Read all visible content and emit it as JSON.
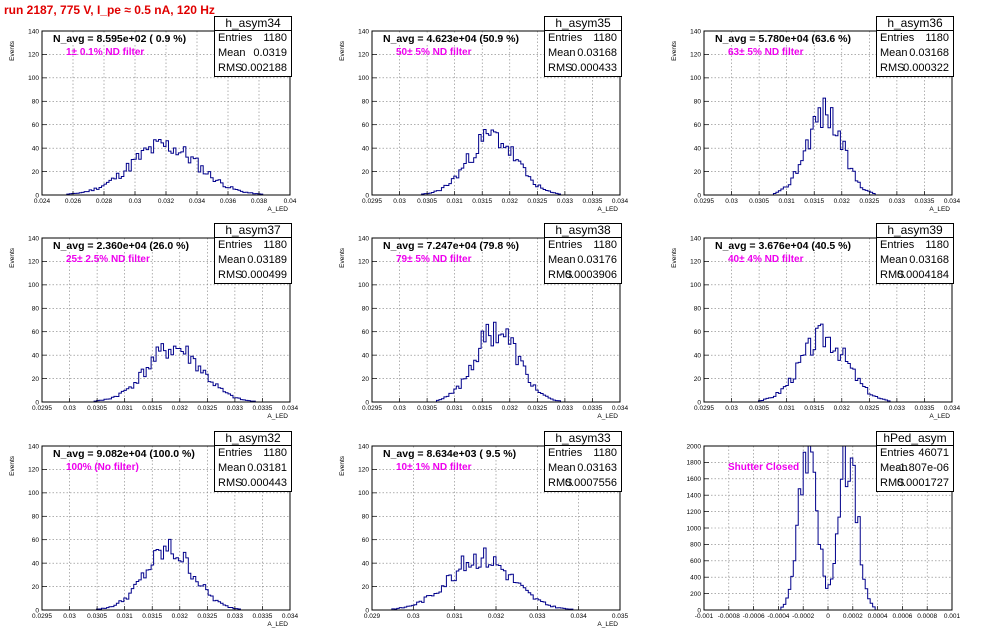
{
  "run_title": "run 2187,   775 V, I_pe ≈ 0.5 nA, 120 Hz",
  "colors": {
    "histogram": "#00008b",
    "annotation": "#ee00ee",
    "run_title": "#e00000",
    "grid": "#7f7f7f"
  },
  "chart_data": [
    {
      "type": "bar",
      "name": "h_asym34",
      "title": "h_asym34",
      "n_avg": "N_avg = 8.595e+02 ( 0.9 %)",
      "filter": "1± 0.1% ND filter",
      "stats": [
        [
          "Entries",
          "1180"
        ],
        [
          "Mean",
          "0.0319"
        ],
        [
          "RMS",
          "0.002188"
        ]
      ],
      "ylabel": "Events",
      "xlabel": "A_LED",
      "xlim": [
        0.024,
        0.04
      ],
      "ylim": [
        0,
        140
      ],
      "xticks": [
        0.024,
        0.026,
        0.028,
        0.03,
        0.032,
        0.034,
        0.036,
        0.038,
        0.04
      ],
      "xtick_labels": [
        "0.024",
        "0.026",
        "0.028",
        "0.03",
        "0.032",
        "0.034",
        "0.036",
        "0.038",
        "0.04"
      ],
      "yticks": [
        0,
        20,
        40,
        60,
        80,
        100,
        120,
        140
      ],
      "bins": 100,
      "mean": 0.0319,
      "rms": 0.002188,
      "peak": 42,
      "peak_offset": 0,
      "seed": 11
    },
    {
      "type": "bar",
      "name": "h_asym35",
      "title": "h_asym35",
      "n_avg": "N_avg = 4.623e+04 (50.9 %)",
      "filter": "50± 5% ND filter",
      "stats": [
        [
          "Entries",
          "1180"
        ],
        [
          "Mean",
          "0.03168"
        ],
        [
          "RMS",
          "0.000433"
        ]
      ],
      "ylabel": "Events",
      "xlabel": "A_LED",
      "xlim": [
        0.0295,
        0.034
      ],
      "ylim": [
        0,
        140
      ],
      "xticks": [
        0.0295,
        0.03,
        0.0305,
        0.031,
        0.0315,
        0.032,
        0.0325,
        0.033,
        0.0335,
        0.034
      ],
      "xtick_labels": [
        "0.0295",
        "0.03",
        "0.0305",
        "0.031",
        "0.0315",
        "0.032",
        "0.0325",
        "0.033",
        "0.0335",
        "0.034"
      ],
      "yticks": [
        0,
        20,
        40,
        60,
        80,
        100,
        120,
        140
      ],
      "bins": 100,
      "mean": 0.03168,
      "rms": 0.000433,
      "peak": 50,
      "peak_offset": 0,
      "seed": 23
    },
    {
      "type": "bar",
      "name": "h_asym36",
      "title": "h_asym36",
      "n_avg": "N_avg = 5.780e+04 (63.6 %)",
      "filter": "63± 5% ND filter",
      "stats": [
        [
          "Entries",
          "1180"
        ],
        [
          "Mean",
          "0.03168"
        ],
        [
          "RMS",
          "0.000322"
        ]
      ],
      "ylabel": "Events",
      "xlabel": "A_LED",
      "xlim": [
        0.0295,
        0.034
      ],
      "ylim": [
        0,
        140
      ],
      "xticks": [
        0.0295,
        0.03,
        0.0305,
        0.031,
        0.0315,
        0.032,
        0.0325,
        0.033,
        0.0335,
        0.034
      ],
      "xtick_labels": [
        "0.0295",
        "0.03",
        "0.0305",
        "0.031",
        "0.0315",
        "0.032",
        "0.0325",
        "0.033",
        "0.0335",
        "0.034"
      ],
      "yticks": [
        0,
        20,
        40,
        60,
        80,
        100,
        120,
        140
      ],
      "bins": 100,
      "mean": 0.03168,
      "rms": 0.000322,
      "peak": 71,
      "peak_offset": 0,
      "seed": 37
    },
    {
      "type": "bar",
      "name": "h_asym37",
      "title": "h_asym37",
      "n_avg": "N_avg = 2.360e+04 (26.0 %)",
      "filter": "25± 2.5% ND filter",
      "stats": [
        [
          "Entries",
          "1180"
        ],
        [
          "Mean",
          "0.03189"
        ],
        [
          "RMS",
          "0.000499"
        ]
      ],
      "ylabel": "Events",
      "xlabel": "A_LED",
      "xlim": [
        0.0295,
        0.034
      ],
      "ylim": [
        0,
        140
      ],
      "xticks": [
        0.0295,
        0.03,
        0.0305,
        0.031,
        0.0315,
        0.032,
        0.0325,
        0.033,
        0.0335,
        0.034
      ],
      "xtick_labels": [
        "0.0295",
        "0.03",
        "0.0305",
        "0.031",
        "0.0315",
        "0.032",
        "0.0325",
        "0.033",
        "0.0335",
        "0.034"
      ],
      "yticks": [
        0,
        20,
        40,
        60,
        80,
        100,
        120,
        140
      ],
      "bins": 100,
      "mean": 0.03189,
      "rms": 0.000499,
      "peak": 46,
      "peak_offset": 0,
      "seed": 41
    },
    {
      "type": "bar",
      "name": "h_asym38",
      "title": "h_asym38",
      "n_avg": "N_avg = 7.247e+04 (79.8 %)",
      "filter": "79± 5% ND filter",
      "stats": [
        [
          "Entries",
          "1180"
        ],
        [
          "Mean",
          "0.03176"
        ],
        [
          "RMS",
          "0.0003906"
        ]
      ],
      "ylabel": "Events",
      "xlabel": "A_LED",
      "xlim": [
        0.0295,
        0.034
      ],
      "ylim": [
        0,
        140
      ],
      "xticks": [
        0.0295,
        0.03,
        0.0305,
        0.031,
        0.0315,
        0.032,
        0.0325,
        0.033,
        0.0335,
        0.034
      ],
      "xtick_labels": [
        "0.0295",
        "0.03",
        "0.0305",
        "0.031",
        "0.0315",
        "0.032",
        "0.0325",
        "0.033",
        "0.0335",
        "0.034"
      ],
      "yticks": [
        0,
        20,
        40,
        60,
        80,
        100,
        120,
        140
      ],
      "bins": 100,
      "mean": 0.03176,
      "rms": 0.0003906,
      "peak": 62,
      "peak_offset": 0,
      "seed": 53
    },
    {
      "type": "bar",
      "name": "h_asym39",
      "title": "h_asym39",
      "n_avg": "N_avg = 3.676e+04 (40.5 %)",
      "filter": "40± 4% ND filter",
      "stats": [
        [
          "Entries",
          "1180"
        ],
        [
          "Mean",
          "0.03168"
        ],
        [
          "RMS",
          "0.0004184"
        ]
      ],
      "ylabel": "Events",
      "xlabel": "A_LED",
      "xlim": [
        0.0295,
        0.034
      ],
      "ylim": [
        0,
        140
      ],
      "xticks": [
        0.0295,
        0.03,
        0.0305,
        0.031,
        0.0315,
        0.032,
        0.0325,
        0.033,
        0.0335,
        0.034
      ],
      "xtick_labels": [
        "0.0295",
        "0.03",
        "0.0305",
        "0.031",
        "0.0315",
        "0.032",
        "0.0325",
        "0.033",
        "0.0335",
        "0.034"
      ],
      "yticks": [
        0,
        20,
        40,
        60,
        80,
        100,
        120,
        140
      ],
      "bins": 100,
      "mean": 0.03168,
      "rms": 0.0004184,
      "peak": 56,
      "peak_offset": 0,
      "seed": 67
    },
    {
      "type": "bar",
      "name": "h_asym32",
      "title": "h_asym32",
      "n_avg": "N_avg = 9.082e+04 (100.0 %)",
      "filter": "100% (No filter)",
      "stats": [
        [
          "Entries",
          "1180"
        ],
        [
          "Mean",
          "0.03181"
        ],
        [
          "RMS",
          "0.000443"
        ]
      ],
      "ylabel": "Events",
      "xlabel": "A_LED",
      "xlim": [
        0.0295,
        0.034
      ],
      "ylim": [
        0,
        140
      ],
      "xticks": [
        0.0295,
        0.03,
        0.0305,
        0.031,
        0.0315,
        0.032,
        0.0325,
        0.033,
        0.0335,
        0.034
      ],
      "xtick_labels": [
        "0.0295",
        "0.03",
        "0.0305",
        "0.031",
        "0.0315",
        "0.032",
        "0.0325",
        "0.033",
        "0.0335",
        "0.034"
      ],
      "yticks": [
        0,
        20,
        40,
        60,
        80,
        100,
        120,
        140
      ],
      "bins": 100,
      "mean": 0.03181,
      "rms": 0.000443,
      "peak": 51,
      "peak_offset": 0,
      "seed": 79
    },
    {
      "type": "bar",
      "name": "h_asym33",
      "title": "h_asym33",
      "n_avg": "N_avg = 8.634e+03 ( 9.5 %)",
      "filter": "10± 1% ND filter",
      "stats": [
        [
          "Entries",
          "1180"
        ],
        [
          "Mean",
          "0.03163"
        ],
        [
          "RMS",
          "0.0007556"
        ]
      ],
      "ylabel": "Events",
      "xlabel": "A_LED",
      "xlim": [
        0.029,
        0.035
      ],
      "ylim": [
        0,
        140
      ],
      "xticks": [
        0.029,
        0.03,
        0.031,
        0.032,
        0.033,
        0.034,
        0.035
      ],
      "xtick_labels": [
        "0.029",
        "0.03",
        "0.031",
        "0.032",
        "0.033",
        "0.034",
        "0.035"
      ],
      "yticks": [
        0,
        20,
        40,
        60,
        80,
        100,
        120,
        140
      ],
      "bins": 100,
      "mean": 0.03163,
      "rms": 0.0007556,
      "peak": 45,
      "peak_offset": 0,
      "seed": 83
    },
    {
      "type": "bar",
      "name": "hPed_asym",
      "title": "hPed_asym",
      "n_avg": "",
      "filter": "Shutter Closed",
      "stats": [
        [
          "Entries",
          "46071"
        ],
        [
          "Mean",
          "-1.807e-06"
        ],
        [
          "RMS",
          "0.0001727"
        ]
      ],
      "ylabel": "",
      "xlabel": "",
      "xlim": [
        -0.001,
        0.001
      ],
      "ylim": [
        0,
        2000
      ],
      "xticks": [
        -0.001,
        -0.0008,
        -0.0006,
        -0.0004,
        -0.0002,
        0,
        0.0002,
        0.0004,
        0.0006,
        0.0008,
        0.001
      ],
      "xtick_labels": [
        "-0.001",
        "-0.0008",
        "-0.0006",
        "-0.0004",
        "-0.0002",
        "0",
        "0.0002",
        "0.0004",
        "0.0006",
        "0.0008",
        "0.001"
      ],
      "yticks": [
        0,
        200,
        400,
        600,
        800,
        1000,
        1200,
        1400,
        1600,
        1800,
        2000
      ],
      "bins": 100,
      "mean": 0.0,
      "rms": 7.5e-05,
      "peak": 1930,
      "peak_offset": 0.00016,
      "seed": 97
    }
  ]
}
